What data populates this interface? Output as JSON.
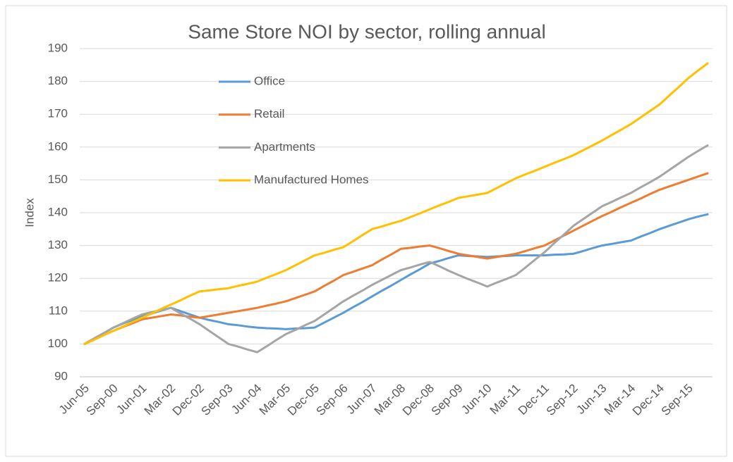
{
  "chart_data": {
    "type": "line",
    "title": "Same Store NOI by sector, rolling annual",
    "y_label": "Index",
    "ylim": [
      90,
      190
    ],
    "yticks": [
      90,
      100,
      110,
      120,
      130,
      140,
      150,
      160,
      170,
      180,
      190
    ],
    "grid": true,
    "categories": [
      "Jun-05",
      null,
      null,
      "Sep-00",
      null,
      null,
      "Jun-01",
      null,
      null,
      "Mar-02",
      null,
      null,
      "Dec-02",
      null,
      null,
      "Sep-03",
      null,
      null,
      "Jun-04",
      null,
      null,
      "Mar-05",
      null,
      null,
      "Dec-05",
      null,
      null,
      "Sep-06",
      null,
      null,
      "Jun-07",
      null,
      null,
      "Mar-08",
      null,
      null,
      "Dec-08",
      null,
      null,
      "Sep-09",
      null,
      null,
      "Jun-10",
      null,
      null,
      "Mar-11",
      null,
      null,
      "Dec-11",
      null,
      null,
      "Sep-12",
      null,
      null,
      "Jun-13",
      null,
      null,
      "Mar-14",
      null,
      null,
      "Dec-14",
      null,
      null,
      "Sep-15",
      null,
      null
    ],
    "series": [
      {
        "name": "Office",
        "color": "#5b9bd5",
        "values": [
          100,
          101.7,
          103.3,
          105,
          106.2,
          107.3,
          108.5,
          109.3,
          110.2,
          111,
          110,
          109,
          108,
          107.3,
          106.7,
          106,
          105.7,
          105.3,
          105,
          104.8,
          104.7,
          104.5,
          104.7,
          104.8,
          105,
          106.5,
          108,
          109.5,
          111.2,
          112.8,
          114.5,
          116.2,
          117.8,
          119.5,
          121.2,
          122.8,
          124.5,
          125.3,
          126.2,
          127,
          126.8,
          126.7,
          126.5,
          126.7,
          126.8,
          127,
          127,
          127,
          127,
          127.2,
          127.3,
          127.5,
          128.3,
          129.2,
          130,
          130.5,
          131,
          131.5,
          132.7,
          133.8,
          135,
          136,
          137,
          138,
          138.8,
          139.5
        ]
      },
      {
        "name": "Retail",
        "color": "#ed7d31",
        "values": [
          100,
          101.3,
          102.7,
          104,
          105.2,
          106.3,
          107.5,
          108,
          108.5,
          109,
          108.7,
          108.3,
          108,
          108.5,
          109,
          109.5,
          110,
          110.5,
          111,
          111.7,
          112.3,
          113,
          114,
          115,
          116,
          117.7,
          119.3,
          121,
          122,
          123,
          124,
          125.7,
          127.3,
          129,
          129.3,
          129.7,
          130,
          129.2,
          128.3,
          127.5,
          127,
          126.5,
          126,
          126.5,
          127,
          127.5,
          128.3,
          129.2,
          130,
          131.5,
          133,
          134.5,
          136,
          137.5,
          139,
          140.3,
          141.7,
          143,
          144.3,
          145.7,
          147,
          148,
          149,
          150,
          151,
          152
        ]
      },
      {
        "name": "Apartments",
        "color": "#a5a5a5",
        "values": [
          100,
          101.7,
          103.3,
          105,
          106.3,
          107.7,
          109,
          109.7,
          110.3,
          111,
          109.3,
          107.7,
          106,
          104,
          102,
          100,
          99.2,
          98.3,
          97.5,
          99.3,
          101.2,
          103,
          104.3,
          105.7,
          107,
          109,
          111,
          113,
          114.7,
          116.3,
          118,
          119.5,
          121,
          122.5,
          123.3,
          124.2,
          125,
          123.7,
          122.3,
          121,
          119.8,
          118.7,
          117.5,
          118.7,
          119.8,
          121,
          123.3,
          125.7,
          128,
          130.7,
          133.3,
          136,
          138,
          140,
          142,
          143.3,
          144.7,
          146,
          147.7,
          149.3,
          151,
          153,
          155,
          157,
          158.8,
          160.5
        ]
      },
      {
        "name": "Manufactured Homes",
        "color": "#ffc000",
        "values": [
          100,
          101.3,
          102.7,
          104,
          105.3,
          106.7,
          108,
          109.3,
          110.7,
          112,
          113.3,
          114.7,
          116,
          116.3,
          116.7,
          117,
          117.7,
          118.3,
          119,
          120.2,
          121.3,
          122.5,
          124,
          125.5,
          127,
          127.8,
          128.7,
          129.5,
          131.3,
          133.2,
          135,
          135.8,
          136.7,
          137.5,
          138.7,
          139.8,
          141,
          142.2,
          143.3,
          144.5,
          145,
          145.5,
          146,
          147.5,
          149,
          150.5,
          151.7,
          152.8,
          154,
          155.2,
          156.3,
          157.5,
          159,
          160.5,
          162,
          163.7,
          165.3,
          167,
          169,
          171,
          173,
          175.7,
          178.3,
          181,
          183.3,
          185.5
        ]
      }
    ]
  }
}
